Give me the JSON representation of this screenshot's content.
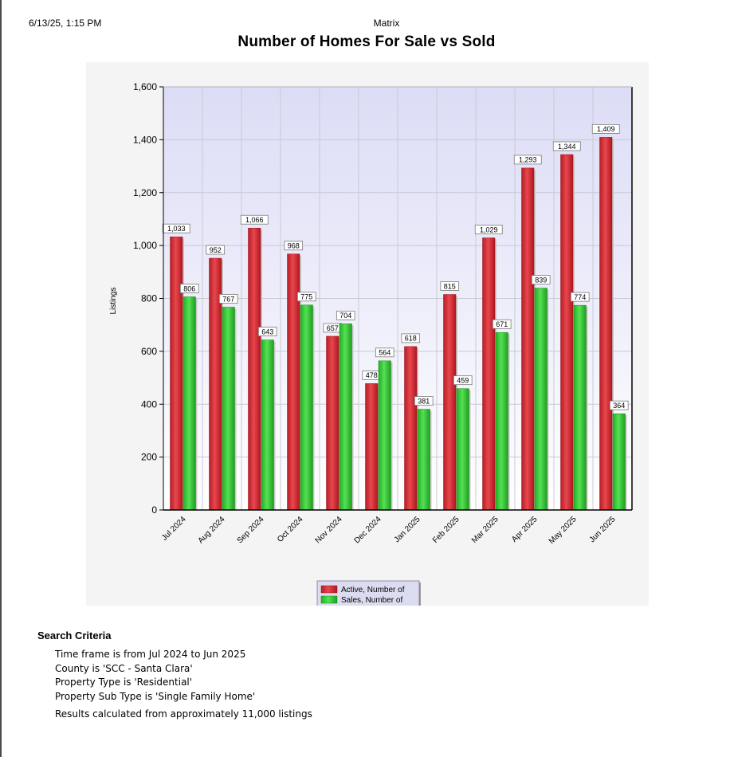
{
  "header": {
    "timestamp": "6/13/25, 1:15 PM",
    "app_name": "Matrix"
  },
  "chart_data": {
    "type": "bar",
    "title": "Number of Homes For Sale vs Sold",
    "ylabel": "Listings",
    "xlabel": "",
    "ylim": [
      0,
      1600
    ],
    "yticks": [
      0,
      200,
      400,
      600,
      800,
      1000,
      1200,
      1400,
      1600
    ],
    "ytick_labels": [
      "0",
      "200",
      "400",
      "600",
      "800",
      "1,000",
      "1,200",
      "1,400",
      "1,600"
    ],
    "categories": [
      "Jul 2024",
      "Aug 2024",
      "Sep 2024",
      "Oct 2024",
      "Nov 2024",
      "Dec 2024",
      "Jan 2025",
      "Feb 2025",
      "Mar 2025",
      "Apr 2025",
      "May 2025",
      "Jun 2025"
    ],
    "series": [
      {
        "name": "Active, Number of",
        "color": "#d62b34",
        "values": [
          1033,
          952,
          1066,
          968,
          657,
          478,
          618,
          815,
          1029,
          1293,
          1344,
          1409
        ],
        "labels": [
          "1,033",
          "952",
          "1,066",
          "968",
          "657",
          "478",
          "618",
          "815",
          "1,029",
          "1,293",
          "1,344",
          "1,409"
        ]
      },
      {
        "name": "Sales, Number of",
        "color": "#33cc33",
        "values": [
          806,
          767,
          643,
          775,
          704,
          564,
          381,
          459,
          671,
          839,
          774,
          364
        ],
        "labels": [
          "806",
          "767",
          "643",
          "775",
          "704",
          "564",
          "381",
          "459",
          "671",
          "839",
          "774",
          "364"
        ]
      }
    ],
    "grid": true,
    "legend_position": "bottom-center"
  },
  "criteria": {
    "title": "Search Criteria",
    "lines": [
      "Time frame is from Jul 2024 to Jun 2025",
      "County is 'SCC - Santa Clara'",
      "Property Type is 'Residential'",
      "Property Sub Type is 'Single Family Home'"
    ],
    "note": "Results calculated from approximately 11,000 listings"
  }
}
